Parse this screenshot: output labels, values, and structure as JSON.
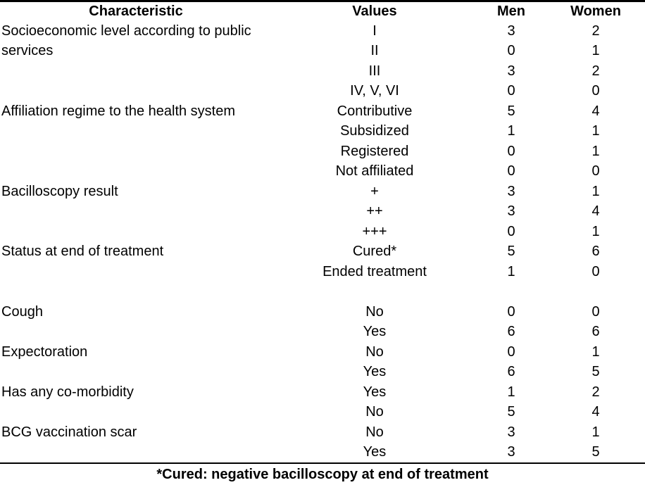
{
  "table": {
    "headers": [
      "Characteristic",
      "Values",
      "Men",
      "Women"
    ],
    "rows": [
      {
        "characteristic": "Socioeconomic level according to public",
        "value": "I",
        "men": "3",
        "women": "2"
      },
      {
        "characteristic": "services",
        "value": "II",
        "men": "0",
        "women": "1"
      },
      {
        "characteristic": "",
        "value": "III",
        "men": "3",
        "women": "2"
      },
      {
        "characteristic": "",
        "value": "IV, V, VI",
        "men": "0",
        "women": "0"
      },
      {
        "characteristic": "Affiliation regime to the health system",
        "value": "Contributive",
        "men": "5",
        "women": "4"
      },
      {
        "characteristic": "",
        "value": "Subsidized",
        "men": "1",
        "women": "1"
      },
      {
        "characteristic": "",
        "value": "Registered",
        "men": "0",
        "women": "1"
      },
      {
        "characteristic": "",
        "value": "Not affiliated",
        "men": "0",
        "women": "0"
      },
      {
        "characteristic": "Bacilloscopy result",
        "value": "+",
        "men": "3",
        "women": "1"
      },
      {
        "characteristic": "",
        "value": "++",
        "men": "3",
        "women": "4"
      },
      {
        "characteristic": "",
        "value": "+++",
        "men": "0",
        "women": "1"
      },
      {
        "characteristic": "Status at end of treatment",
        "value": "Cured*",
        "men": "5",
        "women": "6"
      },
      {
        "characteristic": "",
        "value": "Ended treatment",
        "men": "1",
        "women": "0"
      },
      {
        "characteristic": "",
        "value": "",
        "men": "",
        "women": ""
      },
      {
        "characteristic": "Cough",
        "value": "No",
        "men": "0",
        "women": "0"
      },
      {
        "characteristic": "",
        "value": "Yes",
        "men": "6",
        "women": "6"
      },
      {
        "characteristic": "Expectoration",
        "value": "No",
        "men": "0",
        "women": "1"
      },
      {
        "characteristic": "",
        "value": "Yes",
        "men": "6",
        "women": "5"
      },
      {
        "characteristic": "Has any co-morbidity",
        "value": "Yes",
        "men": "1",
        "women": "2"
      },
      {
        "characteristic": "",
        "value": "No",
        "men": "5",
        "women": "4"
      },
      {
        "characteristic": "BCG vaccination scar",
        "value": "No",
        "men": "3",
        "women": "1"
      },
      {
        "characteristic": "",
        "value": "Yes",
        "men": "3",
        "women": "5"
      }
    ],
    "footnote": "*Cured: negative bacilloscopy at end of treatment"
  }
}
